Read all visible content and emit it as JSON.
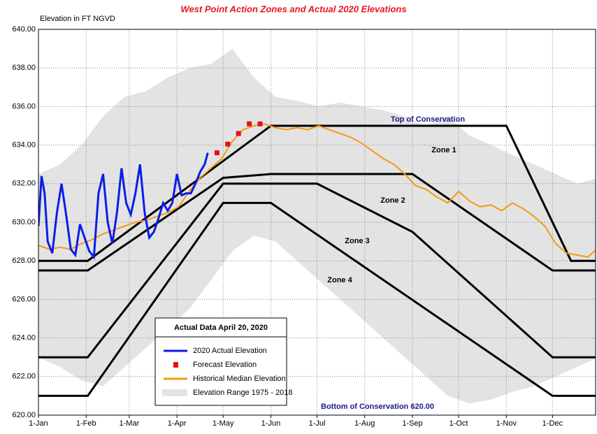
{
  "chart_data": {
    "type": "line",
    "title": "West Point Action Zones and Actual 2020 Elevations",
    "y_label": "Elevation in FT NGVD",
    "legend_title": "Actual Data April 20, 2020",
    "xlim": [
      1,
      363
    ],
    "ylim": [
      620,
      640
    ],
    "grid": true,
    "xticks": [
      {
        "value": 1,
        "label": "1-Jan"
      },
      {
        "value": 32,
        "label": "1-Feb"
      },
      {
        "value": 60,
        "label": "1-Mar"
      },
      {
        "value": 91,
        "label": "1-Apr"
      },
      {
        "value": 121,
        "label": "1-May"
      },
      {
        "value": 152,
        "label": "1-Jun"
      },
      {
        "value": 182,
        "label": "1-Jul"
      },
      {
        "value": 213,
        "label": "1-Aug"
      },
      {
        "value": 244,
        "label": "1-Sep"
      },
      {
        "value": 274,
        "label": "1-Oct"
      },
      {
        "value": 305,
        "label": "1-Nov"
      },
      {
        "value": 335,
        "label": "1-Dec"
      }
    ],
    "yticks": [
      {
        "value": 620,
        "label": "620.00"
      },
      {
        "value": 622,
        "label": "622.00"
      },
      {
        "value": 624,
        "label": "624.00"
      },
      {
        "value": 626,
        "label": "626.00"
      },
      {
        "value": 628,
        "label": "628.00"
      },
      {
        "value": 630,
        "label": "630.00"
      },
      {
        "value": 632,
        "label": "632.00"
      },
      {
        "value": 634,
        "label": "634.00"
      },
      {
        "value": 636,
        "label": "636.00"
      },
      {
        "value": 638,
        "label": "638.00"
      },
      {
        "value": 640,
        "label": "640.00"
      }
    ],
    "annotations": [
      "Top of Conservation",
      "Zone 1",
      "Zone 2",
      "Zone 3",
      "Zone 4",
      "Bottom of Conservation 620.00"
    ],
    "series": [
      {
        "name": "2020 Actual Elevation",
        "style": "line",
        "color": "#0a1ee6",
        "x": [
          1,
          3,
          5,
          7,
          10,
          13,
          16,
          19,
          22,
          25,
          28,
          31,
          34,
          37,
          40,
          43,
          46,
          49,
          52,
          55,
          58,
          61,
          64,
          67,
          70,
          73,
          76,
          79,
          82,
          85,
          88,
          91,
          94,
          97,
          100,
          103,
          106,
          109,
          111
        ],
        "values": [
          629.8,
          632.4,
          631.5,
          629,
          628.4,
          630.5,
          632,
          630.4,
          628.6,
          628.3,
          629.9,
          629.2,
          628.5,
          628.2,
          631.5,
          632.5,
          630,
          628.9,
          630.5,
          632.8,
          631,
          630.4,
          631.5,
          633,
          630.5,
          629.2,
          629.5,
          630.2,
          631,
          630.6,
          631,
          632.5,
          631.4,
          631.5,
          631.5,
          632,
          632.6,
          633,
          633.6
        ]
      },
      {
        "name": "Forecast Elevation",
        "style": "points",
        "color": "#e0101a",
        "x": [
          117,
          124,
          131,
          138,
          145
        ],
        "values": [
          633.6,
          634.05,
          634.6,
          635.1,
          635.1
        ]
      },
      {
        "name": "Historical Median Elevation",
        "style": "line",
        "color": "#f59a12",
        "x": [
          1,
          8,
          15,
          22,
          29,
          36,
          43,
          50,
          57,
          64,
          71,
          78,
          85,
          92,
          99,
          106,
          113,
          120,
          127,
          134,
          141,
          148,
          155,
          162,
          169,
          176,
          183,
          190,
          197,
          204,
          211,
          218,
          225,
          232,
          239,
          246,
          253,
          260,
          267,
          274,
          281,
          288,
          295,
          302,
          309,
          316,
          323,
          330,
          337,
          344,
          351,
          358,
          365
        ],
        "values": [
          628.8,
          628.6,
          628.7,
          628.6,
          628.9,
          629.1,
          629.4,
          629.6,
          629.8,
          630.0,
          630.1,
          630.3,
          630.5,
          630.8,
          631.6,
          632.3,
          632.8,
          633.3,
          634.2,
          634.8,
          635.0,
          635.1,
          634.9,
          634.8,
          634.9,
          634.8,
          635.0,
          634.8,
          634.6,
          634.4,
          634.1,
          633.7,
          633.3,
          633.0,
          632.5,
          631.9,
          631.7,
          631.3,
          631.0,
          631.6,
          631.1,
          630.8,
          630.9,
          630.6,
          631.0,
          630.7,
          630.3,
          629.8,
          628.9,
          628.4,
          628.3,
          628.2,
          628.7
        ]
      },
      {
        "name": "Elevation Range 1975 - 2018",
        "style": "band",
        "color": "#e3e3e3",
        "x": [
          1,
          15,
          29,
          43,
          57,
          71,
          85,
          99,
          113,
          127,
          141,
          155,
          169,
          183,
          197,
          211,
          225,
          239,
          253,
          267,
          281,
          295,
          309,
          323,
          337,
          351,
          365
        ],
        "values": [
          632.5,
          633,
          634,
          635.5,
          636.5,
          636.8,
          637.5,
          638,
          638.2,
          639,
          637.5,
          636.5,
          636.3,
          636,
          636.2,
          636,
          635.8,
          635.5,
          635,
          635.5,
          634.5,
          634,
          633.5,
          633,
          632.5,
          632,
          632.3
        ],
        "lower": [
          623,
          622.5,
          621.8,
          621.5,
          622.5,
          623.5,
          624.5,
          625.5,
          627,
          628.5,
          629.3,
          629,
          628,
          627,
          626,
          625,
          624,
          623,
          622,
          621,
          620.6,
          620.8,
          621.2,
          621.5,
          622,
          622.5,
          623
        ]
      }
    ],
    "zone_lines": [
      {
        "color": "#000000",
        "x": [
          1,
          33,
          152,
          305,
          347,
          366
        ],
        "values": [
          628,
          628,
          635,
          635,
          628,
          628
        ]
      },
      {
        "color": "#000000",
        "x": [
          1,
          33,
          121,
          152,
          244,
          335,
          366
        ],
        "values": [
          627.5,
          627.5,
          632.3,
          632.5,
          632.5,
          627.5,
          627.5
        ]
      },
      {
        "color": "#000000",
        "x": [
          1,
          33,
          121,
          182,
          244,
          335,
          366
        ],
        "values": [
          623,
          623,
          632,
          632,
          629.5,
          623,
          623
        ]
      },
      {
        "color": "#000000",
        "x": [
          1,
          33,
          121,
          152,
          335,
          366
        ],
        "values": [
          621,
          621,
          631,
          631,
          621,
          621
        ]
      }
    ]
  }
}
